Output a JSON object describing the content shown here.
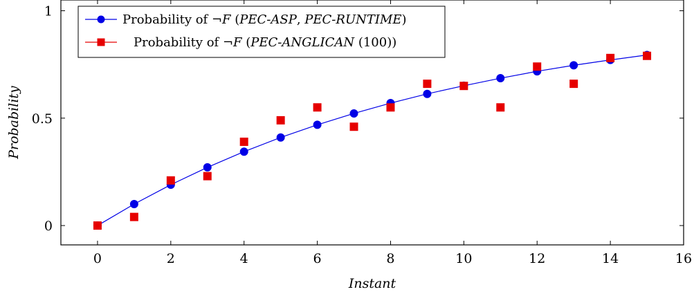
{
  "chart_data": {
    "type": "scatter",
    "title": "",
    "xlabel": "Instant",
    "ylabel": "Probability",
    "xlim": [
      -1,
      16
    ],
    "ylim": [
      -0.09,
      1.05
    ],
    "xticks": [
      0,
      2,
      4,
      6,
      8,
      10,
      12,
      14,
      16
    ],
    "xtick_labels": [
      "0",
      "2",
      "4",
      "6",
      "8",
      "10",
      "12",
      "14",
      "16"
    ],
    "yticks": [
      0,
      0.5,
      1
    ],
    "ytick_labels": [
      "0",
      "0.5",
      "1"
    ],
    "grid": false,
    "legend_position": "top-left",
    "series": [
      {
        "name": "Probability of ¬F (PEC-ASP, PEC-RUNTIME)",
        "legend_parts": [
          {
            "text": "Probability of ¬",
            "italic": false
          },
          {
            "text": "F",
            "italic": true
          },
          {
            "text": " (",
            "italic": false
          },
          {
            "text": "PEC-ASP",
            "italic": true
          },
          {
            "text": ", ",
            "italic": false
          },
          {
            "text": "PEC-RUNTIME",
            "italic": true
          },
          {
            "text": ")",
            "italic": false
          }
        ],
        "marker": "circle",
        "line": true,
        "color": "#0000e6",
        "x": [
          0,
          1,
          2,
          3,
          4,
          5,
          6,
          7,
          8,
          9,
          10,
          11,
          12,
          13,
          14,
          15
        ],
        "y": [
          0,
          0.1,
          0.19,
          0.271,
          0.344,
          0.41,
          0.469,
          0.522,
          0.57,
          0.613,
          0.651,
          0.686,
          0.718,
          0.746,
          0.771,
          0.794
        ]
      },
      {
        "name": "Probability of ¬F (PEC-ANGLICAN (100))",
        "legend_parts": [
          {
            "text": "Probability of ¬",
            "italic": false
          },
          {
            "text": "F",
            "italic": true
          },
          {
            "text": " (",
            "italic": false
          },
          {
            "text": "PEC-ANGLICAN",
            "italic": true
          },
          {
            "text": " (100))",
            "italic": false
          }
        ],
        "marker": "square",
        "line": false,
        "color": "#e60000",
        "x": [
          0,
          1,
          2,
          3,
          4,
          5,
          6,
          7,
          8,
          9,
          10,
          11,
          12,
          13,
          14,
          15
        ],
        "y": [
          0,
          0.04,
          0.21,
          0.23,
          0.39,
          0.49,
          0.55,
          0.46,
          0.55,
          0.66,
          0.65,
          0.55,
          0.74,
          0.66,
          0.78,
          0.79
        ]
      }
    ]
  }
}
